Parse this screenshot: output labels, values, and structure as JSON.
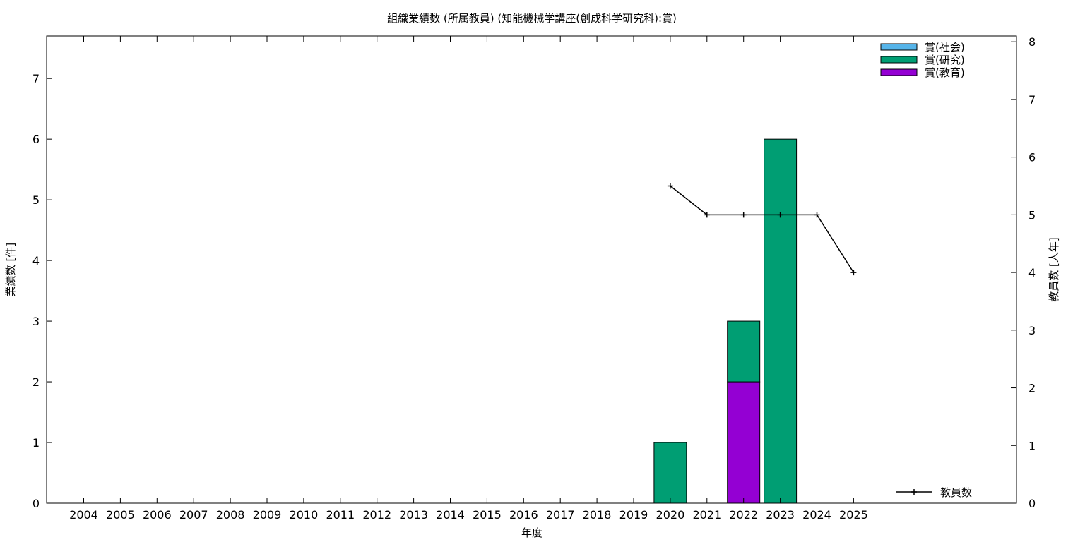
{
  "chart_data": {
    "type": "bar",
    "title": "組織業績数 (所属教員) (知能機械学講座(創成科学研究科):賞)",
    "xlabel": "年度",
    "ylabel": "業績数 [件]",
    "y2label": "教員数 [人年]",
    "categories": [
      "2004",
      "2005",
      "2006",
      "2007",
      "2008",
      "2009",
      "2010",
      "2011",
      "2012",
      "2013",
      "2014",
      "2015",
      "2016",
      "2017",
      "2018",
      "2019",
      "2020",
      "2021",
      "2022",
      "2023",
      "2024",
      "2025"
    ],
    "ylim": [
      0,
      7.7
    ],
    "y2lim": [
      0,
      8.1
    ],
    "yticks": [
      0,
      1,
      2,
      3,
      4,
      5,
      6,
      7
    ],
    "y2ticks": [
      0,
      1,
      2,
      3,
      4,
      5,
      6,
      7,
      8
    ],
    "stacked": true,
    "series": [
      {
        "name": "賞(社会)",
        "color": "#56b4e9",
        "values": [
          0,
          0,
          0,
          0,
          0,
          0,
          0,
          0,
          0,
          0,
          0,
          0,
          0,
          0,
          0,
          0,
          0,
          0,
          0,
          0,
          0,
          0
        ]
      },
      {
        "name": "賞(研究)",
        "color": "#009e73",
        "values": [
          0,
          0,
          0,
          0,
          0,
          0,
          0,
          0,
          0,
          0,
          0,
          0,
          0,
          0,
          0,
          0,
          1,
          0,
          1,
          6,
          0,
          0
        ]
      },
      {
        "name": "賞(教育)",
        "color": "#9400d3",
        "values": [
          0,
          0,
          0,
          0,
          0,
          0,
          0,
          0,
          0,
          0,
          0,
          0,
          0,
          0,
          0,
          0,
          0,
          0,
          2,
          0,
          0,
          0
        ]
      }
    ],
    "line_series": {
      "name": "教員数",
      "color": "#000000",
      "axis": "right",
      "x": [
        "2020",
        "2021",
        "2022",
        "2023",
        "2024",
        "2025"
      ],
      "values": [
        5.5,
        5,
        5,
        5,
        5,
        4
      ]
    },
    "legend_position": "top-right",
    "line_legend_position": "bottom-right",
    "grid": false
  }
}
